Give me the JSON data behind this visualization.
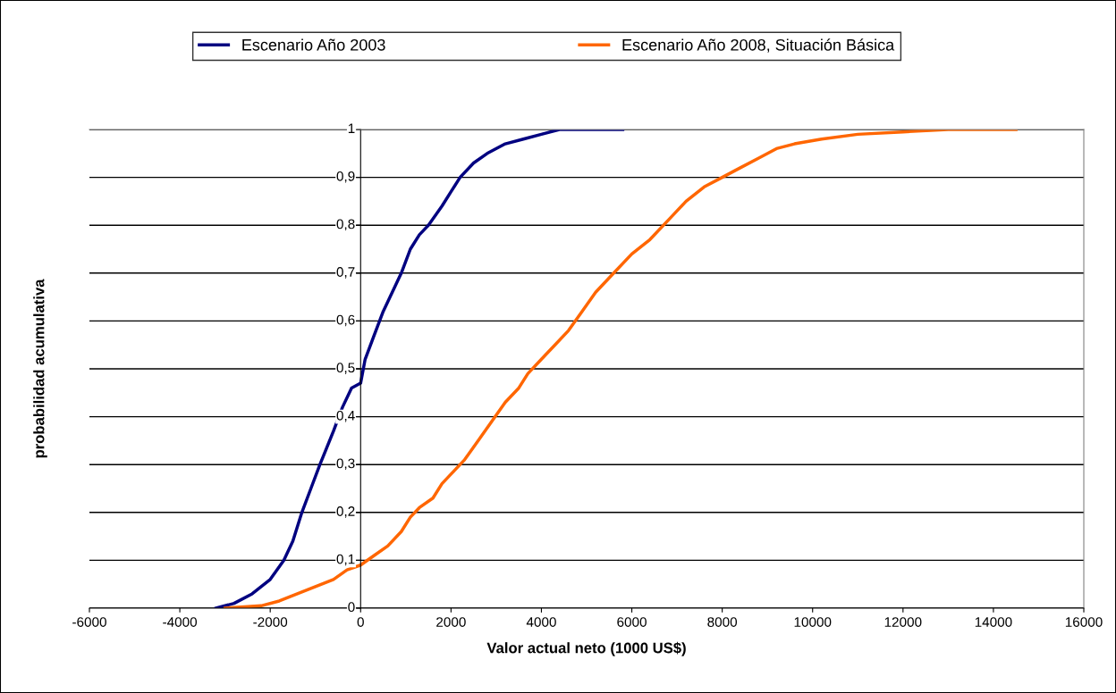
{
  "chart_data": {
    "type": "line",
    "xlabel": "Valor actual neto (1000 US$)",
    "ylabel": "probabilidad acumulativa",
    "xlim": [
      -6000,
      16000
    ],
    "xticks": [
      -6000,
      -4000,
      -2000,
      0,
      2000,
      4000,
      6000,
      8000,
      10000,
      12000,
      14000,
      16000
    ],
    "ylim": [
      0,
      1
    ],
    "yticks": [
      0,
      {
        "value": 0.1,
        "label": "0,1"
      },
      {
        "value": 0.2,
        "label": "0,2"
      },
      {
        "value": 0.3,
        "label": "0,3"
      },
      {
        "value": 0.4,
        "label": "0,4"
      },
      {
        "value": 0.5,
        "label": "0,5"
      },
      {
        "value": 0.6,
        "label": "0,6"
      },
      {
        "value": 0.7,
        "label": "0,7"
      },
      {
        "value": 0.8,
        "label": "0,8"
      },
      {
        "value": 0.9,
        "label": "0,9"
      },
      1
    ],
    "grid": "y",
    "legend": "top",
    "marker": "none",
    "line_style": "solid",
    "series": [
      {
        "name": "Escenario Año 2003",
        "color": "#000080",
        "x": [
          -3200,
          -2800,
          -2400,
          -2000,
          -1700,
          -1500,
          -1300,
          -1100,
          -900,
          -600,
          -400,
          -200,
          0,
          100,
          300,
          500,
          700,
          900,
          1100,
          1300,
          1500,
          1800,
          2000,
          2200,
          2500,
          2800,
          3200,
          3600,
          4000,
          4400,
          5800
        ],
        "values": [
          0,
          0.01,
          0.03,
          0.06,
          0.1,
          0.14,
          0.2,
          0.25,
          0.3,
          0.37,
          0.42,
          0.46,
          0.47,
          0.52,
          0.57,
          0.62,
          0.66,
          0.7,
          0.75,
          0.78,
          0.8,
          0.84,
          0.87,
          0.9,
          0.93,
          0.95,
          0.97,
          0.98,
          0.99,
          1,
          1
        ]
      },
      {
        "name": "Escenario Año 2008, Situación Básica",
        "color": "#ff6600",
        "x": [
          -3000,
          -2200,
          -1800,
          -1400,
          -1000,
          -600,
          -300,
          0,
          300,
          600,
          900,
          1100,
          1300,
          1600,
          1800,
          2000,
          2300,
          2600,
          2900,
          3200,
          3500,
          3700,
          4000,
          4300,
          4600,
          4900,
          5200,
          5600,
          6000,
          6400,
          6800,
          7200,
          7600,
          8000,
          8400,
          8800,
          9200,
          9600,
          10200,
          11000,
          12000,
          13000,
          14500
        ],
        "values": [
          0,
          0.005,
          0.015,
          0.03,
          0.045,
          0.06,
          0.08,
          0.09,
          0.11,
          0.13,
          0.16,
          0.19,
          0.21,
          0.23,
          0.26,
          0.28,
          0.31,
          0.35,
          0.39,
          0.43,
          0.46,
          0.49,
          0.52,
          0.55,
          0.58,
          0.62,
          0.66,
          0.7,
          0.74,
          0.77,
          0.81,
          0.85,
          0.88,
          0.9,
          0.92,
          0.94,
          0.96,
          0.97,
          0.98,
          0.99,
          0.995,
          1,
          1
        ]
      }
    ]
  }
}
